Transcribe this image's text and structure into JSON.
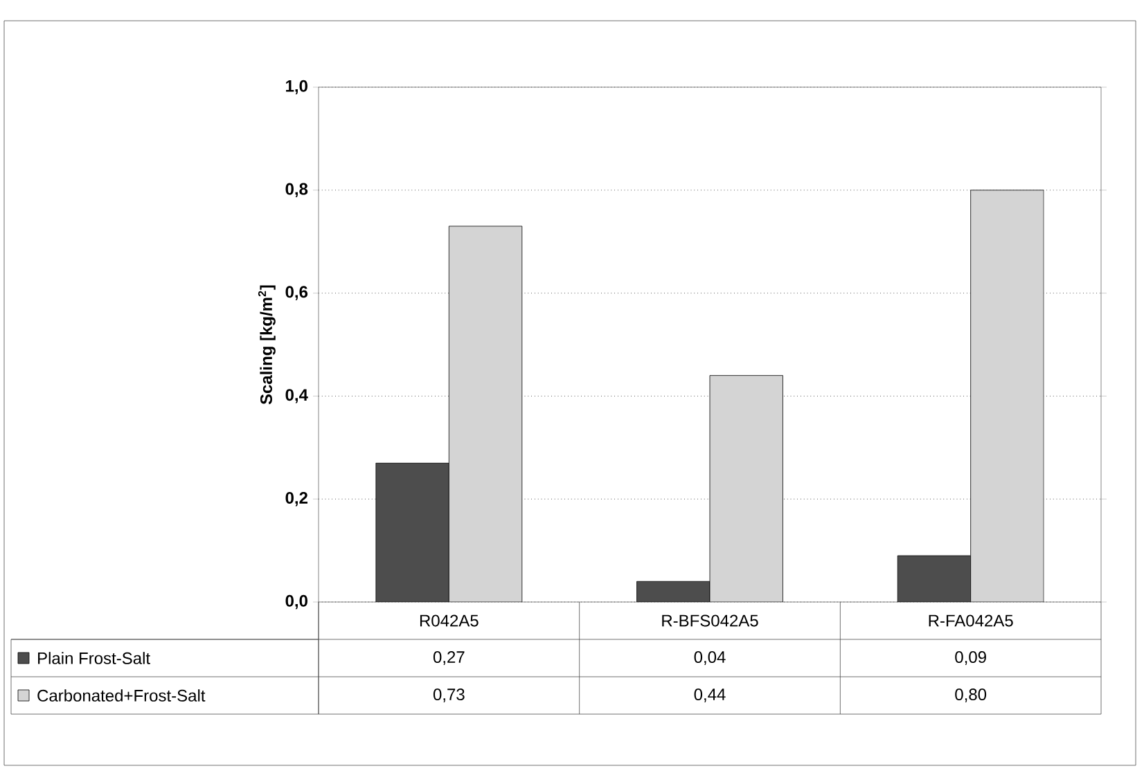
{
  "chart_data": {
    "type": "bar",
    "ylabel": "Scaling [kg/m$^{2}$]",
    "categories": [
      "R042A5",
      "R-BFS042A5",
      "R-FA042A5"
    ],
    "series": [
      {
        "name": "Plain Frost-Salt",
        "color": "#4d4d4d",
        "values": [
          0.27,
          0.04,
          0.09
        ],
        "value_labels": [
          "0,27",
          "0,04",
          "0,09"
        ]
      },
      {
        "name": "Carbonated+Frost-Salt",
        "color": "#d4d4d4",
        "values": [
          0.73,
          0.44,
          0.8
        ],
        "value_labels": [
          "0,73",
          "0,44",
          "0,80"
        ]
      }
    ],
    "ylim": [
      0,
      1
    ],
    "yticks": [
      {
        "value": 0,
        "label": "0,0"
      },
      {
        "value": 0.2,
        "label": "0,2"
      },
      {
        "value": 0.4,
        "label": "0,4"
      },
      {
        "value": 0.6,
        "label": "0,6"
      },
      {
        "value": 0.8,
        "label": "0,8"
      },
      {
        "value": 1,
        "label": "1,0"
      }
    ],
    "grid": "y",
    "legend": "bottom left"
  }
}
